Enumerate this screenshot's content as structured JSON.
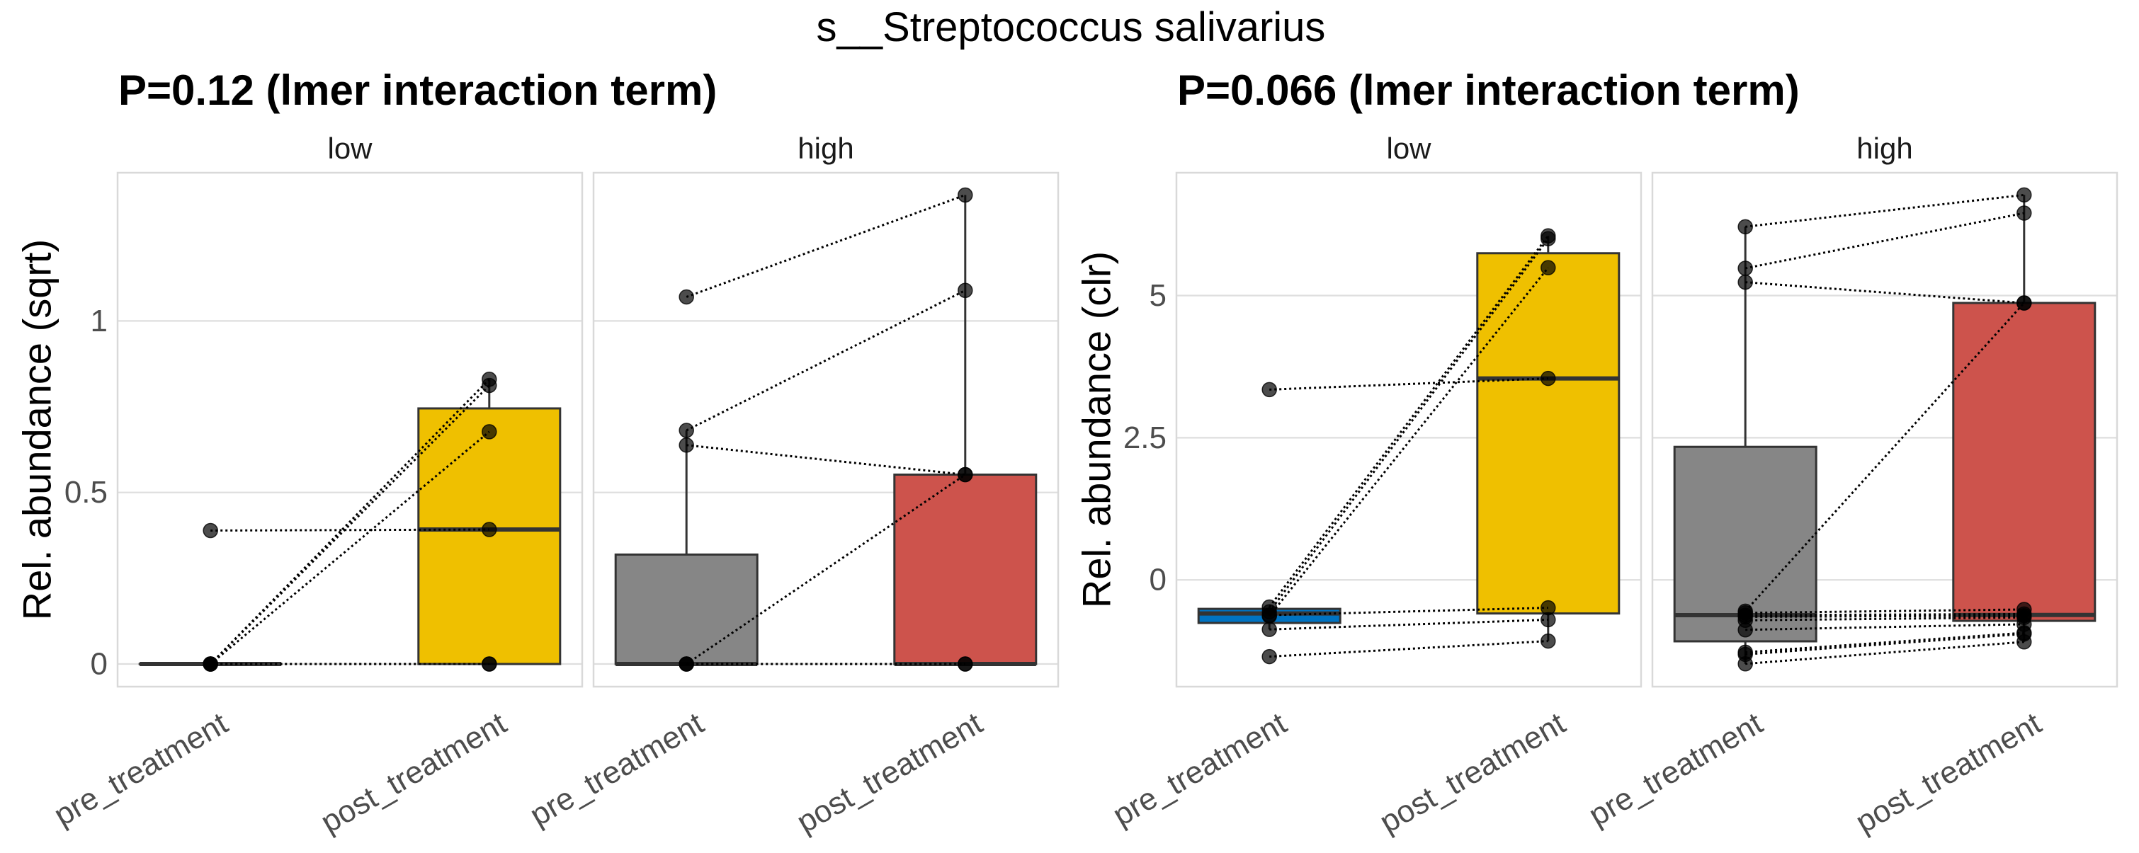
{
  "chart_data": {
    "title": "s__Streptococcus salivarius",
    "type": "box",
    "colors": {
      "pre_treatment_low": "#0073C2",
      "post_treatment_low": "#EFC000",
      "pre_treatment_high": "#868686",
      "post_treatment_high": "#CD534C",
      "box_outline": "#333333",
      "point": "#000000",
      "line": "#000000"
    },
    "plots": [
      {
        "subtitle": "P=0.12 (lmer interaction term)",
        "ylabel": "Rel. abundance (sqrt)",
        "ylim": [
          -0.066,
          1.432
        ],
        "yticks": [
          0,
          0.5,
          1
        ],
        "ytick_labels": [
          "0",
          "0.5",
          "1"
        ],
        "grid": true,
        "facets": [
          {
            "strip": "low",
            "categories": [
              "pre_treatment",
              "post_treatment"
            ],
            "boxes": [
              {
                "category": "pre_treatment",
                "fill_key": "pre_treatment_low",
                "q1": 0,
                "median": 0,
                "q3": 0,
                "whisker_low": 0,
                "whisker_high": 0
              },
              {
                "category": "post_treatment",
                "fill_key": "post_treatment_low",
                "q1": 0,
                "median": 0.392,
                "q3": 0.745,
                "whisker_low": 0,
                "whisker_high": 0.83
              }
            ],
            "pairs": [
              [
                0.389,
                0.392
              ],
              [
                0,
                0.83
              ],
              [
                0,
                0.812
              ],
              [
                0,
                0.677
              ],
              [
                0,
                0
              ],
              [
                0,
                0
              ]
            ]
          },
          {
            "strip": "high",
            "categories": [
              "pre_treatment",
              "post_treatment"
            ],
            "boxes": [
              {
                "category": "pre_treatment",
                "fill_key": "pre_treatment_high",
                "q1": 0,
                "median": 0,
                "q3": 0.319,
                "whisker_low": 0,
                "whisker_high": 0.681
              },
              {
                "category": "post_treatment",
                "fill_key": "post_treatment_high",
                "q1": 0,
                "median": 0,
                "q3": 0.552,
                "whisker_low": 0,
                "whisker_high": 1.367
              }
            ],
            "pairs": [
              [
                1.07,
                1.367
              ],
              [
                0.681,
                1.089
              ],
              [
                0.638,
                0.552
              ],
              [
                0,
                0.552
              ],
              [
                0,
                0
              ],
              [
                0,
                0
              ]
            ]
          }
        ]
      },
      {
        "subtitle": "P=0.066 (lmer interaction term)",
        "ylabel": "Rel. abundance (clr)",
        "ylim": [
          -1.877,
          7.16
        ],
        "yticks": [
          0,
          2.5,
          5
        ],
        "ytick_labels": [
          "0",
          "2.5",
          "5"
        ],
        "grid": true,
        "facets": [
          {
            "strip": "low",
            "categories": [
              "pre_treatment",
              "post_treatment"
            ],
            "boxes": [
              {
                "category": "pre_treatment",
                "fill_key": "pre_treatment_low",
                "q1": -0.757,
                "median": -0.59,
                "q3": -0.509,
                "whisker_low": -0.871,
                "whisker_high": -0.477
              },
              {
                "category": "post_treatment",
                "fill_key": "post_treatment_low",
                "q1": -0.59,
                "median": 3.543,
                "q3": 5.744,
                "whisker_low": -1.075,
                "whisker_high": 6.05
              }
            ],
            "pairs": [
              [
                3.346,
                3.543
              ],
              [
                -0.477,
                6.05
              ],
              [
                -0.56,
                6.0
              ],
              [
                -0.636,
                5.49
              ],
              [
                -0.62,
                -0.49
              ],
              [
                -0.871,
                -0.7
              ],
              [
                -1.349,
                -1.075
              ]
            ]
          },
          {
            "strip": "high",
            "categories": [
              "pre_treatment",
              "post_treatment"
            ],
            "boxes": [
              {
                "category": "pre_treatment",
                "fill_key": "pre_treatment_high",
                "q1": -1.08,
                "median": -0.62,
                "q3": 2.34,
                "whisker_low": -1.476,
                "whisker_high": 6.21
              },
              {
                "category": "post_treatment",
                "fill_key": "post_treatment_high",
                "q1": -0.72,
                "median": -0.617,
                "q3": 4.87,
                "whisker_low": -1.09,
                "whisker_high": 6.77
              }
            ],
            "pairs": [
              [
                6.21,
                6.77
              ],
              [
                5.48,
                6.45
              ],
              [
                5.235,
                4.87
              ],
              [
                -0.55,
                4.87
              ],
              [
                -0.58,
                -0.52
              ],
              [
                -0.62,
                -0.6
              ],
              [
                -0.65,
                -0.63
              ],
              [
                -0.71,
                -0.66
              ],
              [
                -0.878,
                -0.78
              ],
              [
                -1.272,
                -0.93
              ],
              [
                -1.31,
                -0.95
              ],
              [
                -1.476,
                -1.09
              ]
            ]
          }
        ]
      }
    ]
  }
}
